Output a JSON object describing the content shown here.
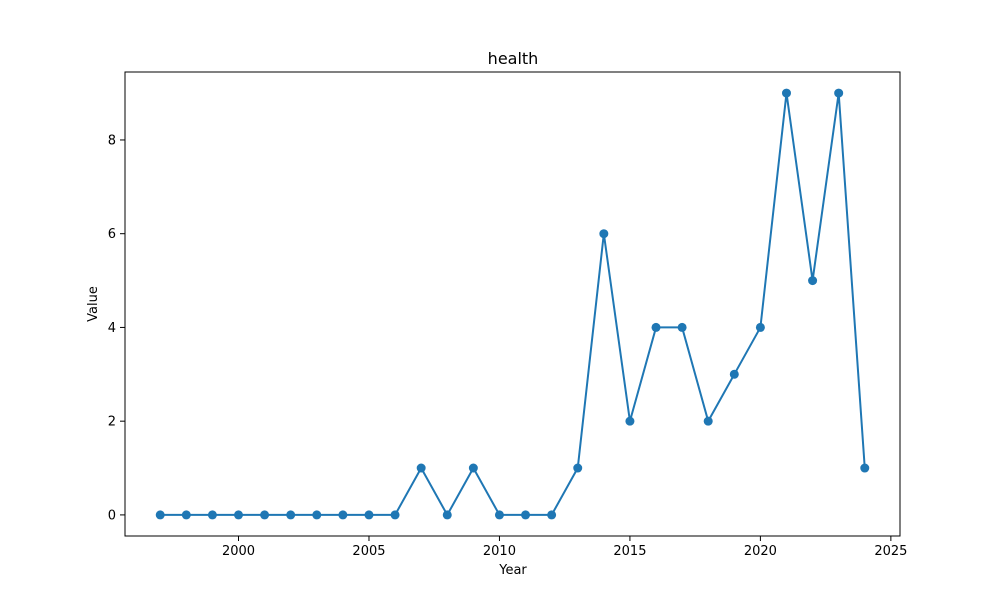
{
  "chart_data": {
    "type": "line",
    "title": "health",
    "xlabel": "Year",
    "ylabel": "Value",
    "xlim": [
      1995.65,
      2025.35
    ],
    "ylim": [
      -0.45,
      9.45
    ],
    "xticks": [
      2000,
      2005,
      2010,
      2015,
      2020,
      2025
    ],
    "yticks": [
      0,
      2,
      4,
      6,
      8
    ],
    "grid": false,
    "legend": "none",
    "color": "#1f77b4",
    "marker": "circle",
    "x": [
      1997,
      1998,
      1999,
      2000,
      2001,
      2002,
      2003,
      2004,
      2005,
      2006,
      2007,
      2008,
      2009,
      2010,
      2011,
      2012,
      2013,
      2014,
      2015,
      2016,
      2017,
      2018,
      2019,
      2020,
      2021,
      2022,
      2023,
      2024
    ],
    "y": [
      0,
      0,
      0,
      0,
      0,
      0,
      0,
      0,
      0,
      0,
      1,
      0,
      1,
      0,
      0,
      0,
      1,
      6,
      2,
      4,
      4,
      2,
      3,
      4,
      9,
      5,
      9,
      1
    ]
  }
}
